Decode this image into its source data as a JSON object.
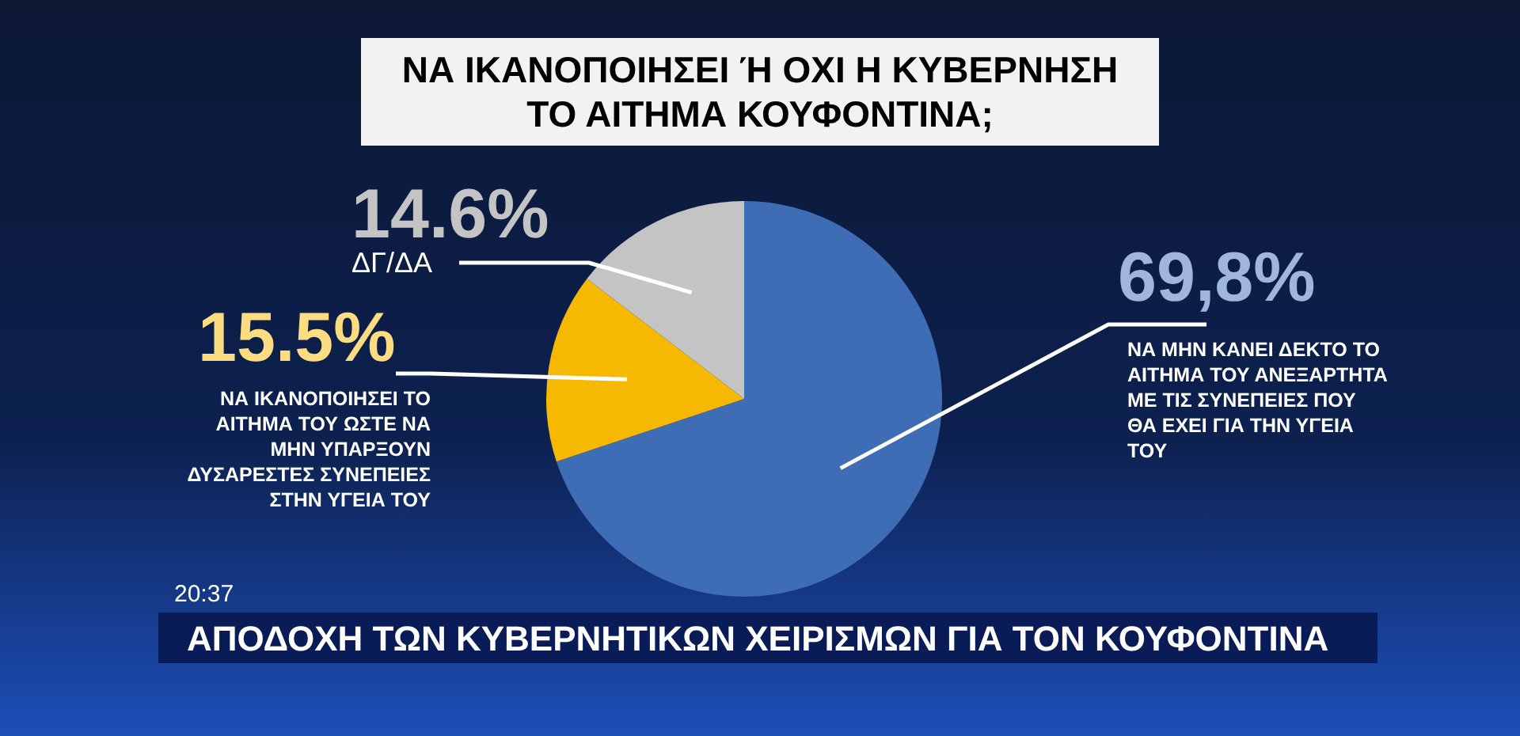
{
  "chart_data": {
    "type": "pie",
    "title": "ΝΑ ΙΚΑΝΟΠΟΙΗΣΕΙ Ή ΟΧΙ Η ΚΥΒΕΡΝΗΣΗ ΤΟ ΑΙΤΗΜΑ ΚΟΥΦΟΝΤΙΝΑ;",
    "categories": [
      "ΝΑ ΜΗΝ ΚΑΝΕΙ ΔΕΚΤΟ ΤΟ ΑΙΤΗΜΑ ΤΟΥ ΑΝΕΞΑΡΤΗΤΑ ΜΕ ΤΙΣ ΣΥΝΕΠΕΙΕΣ ΠΟΥ ΘΑ ΕΧΕΙ ΓΙΑ ΤΗΝ ΥΓΕΙΑ ΤΟΥ",
      "ΝΑ ΙΚΑΝΟΠΟΙΗΣΕΙ ΤΟ ΑΙΤΗΜΑ ΤΟΥ ΩΣΤΕ ΝΑ ΜΗΝ ΥΠΑΡΞΟΥΝ ΔΥΣΑΡΕΣΤΕΣ ΣΥΝΕΠΕΙΕΣ ΣΤΗΝ ΥΓΕΙΑ ΤΟΥ",
      "ΔΓ/ΔΑ"
    ],
    "values": [
      69.8,
      15.5,
      14.6
    ],
    "colors": [
      "#3f6db5",
      "#f6b800",
      "#c4c4c4"
    ],
    "value_labels": [
      "69,8%",
      "15.5%",
      "14.6%"
    ],
    "annotations": [
      "20:37",
      "ΑΠΟΔΟΧΗ ΤΩΝ ΚΥΒΕΡΝΗΤΙΚΩΝ ΧΕΙΡΙΣΜΩΝ ΓΙΑ ΤΟΝ ΚΟΥΦΟΝΤΙΝΑ"
    ]
  }
}
